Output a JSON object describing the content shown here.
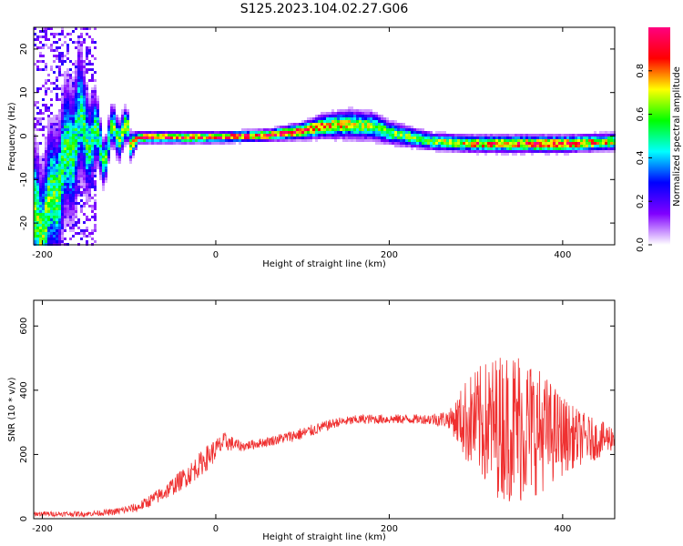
{
  "title": "S125.2023.104.02.27.G06",
  "chart_data": [
    {
      "type": "heatmap",
      "xlabel": "Height of straight line (km)",
      "ylabel": "Frequency (Hz)",
      "xlim": [
        -210,
        460
      ],
      "ylim": [
        -25,
        25
      ],
      "xticks": [
        -200,
        0,
        200,
        400
      ],
      "yticks": [
        -20,
        -10,
        0,
        10,
        20
      ],
      "colorbar": {
        "label": "Normalized spectral amplitude",
        "range": [
          0,
          1
        ],
        "ticks": [
          "0.0",
          "0.2",
          "0.4",
          "0.6",
          "0.8"
        ],
        "tick_values": [
          0.0,
          0.2,
          0.4,
          0.6,
          0.8
        ],
        "colormap": [
          "#ffffff",
          "#8000ff",
          "#0000ff",
          "#00ffff",
          "#00ff00",
          "#ffff00",
          "#ff0000",
          "#ff0080"
        ]
      },
      "ridge": {
        "x": [
          -200,
          -160,
          -130,
          -110,
          -100,
          -90,
          -60,
          0,
          60,
          100,
          120,
          150,
          180,
          200,
          250,
          300,
          350,
          400,
          460
        ],
        "y": [
          -20,
          3,
          -3,
          3,
          -2,
          0,
          0,
          0,
          0.5,
          1.5,
          2.5,
          3,
          2.5,
          1,
          -1,
          -1.5,
          -1.5,
          -1.5,
          -1
        ],
        "spread": [
          25,
          25,
          8,
          7,
          5,
          2,
          2,
          2,
          2,
          3,
          4,
          5,
          5,
          4,
          3,
          3,
          3,
          3,
          3
        ],
        "peak": [
          0.6,
          0.5,
          0.55,
          0.6,
          0.7,
          0.9,
          0.9,
          0.85,
          0.95,
          0.9,
          0.8,
          0.7,
          0.6,
          0.6,
          0.65,
          0.8,
          0.9,
          0.9,
          0.7
        ]
      },
      "grid": false
    },
    {
      "type": "line",
      "xlabel": "Height of straight line (km)",
      "ylabel": "SNR (10 * v/v)",
      "xlim": [
        -210,
        460
      ],
      "ylim": [
        0,
        680
      ],
      "xticks": [
        -200,
        0,
        200,
        400
      ],
      "yticks": [
        0,
        200,
        400,
        600
      ],
      "color": "#ef3030",
      "envelope": {
        "x": [
          -210,
          -150,
          -120,
          -90,
          -60,
          -30,
          -10,
          10,
          30,
          60,
          100,
          140,
          170,
          200,
          240,
          270,
          290,
          320,
          350,
          380,
          410,
          440,
          460
        ],
        "mean": [
          15,
          15,
          20,
          35,
          80,
          140,
          190,
          240,
          225,
          240,
          265,
          300,
          310,
          310,
          310,
          310,
          305,
          290,
          290,
          270,
          255,
          245,
          255
        ],
        "amp": [
          8,
          8,
          10,
          15,
          25,
          35,
          40,
          30,
          15,
          15,
          20,
          15,
          15,
          15,
          15,
          30,
          140,
          220,
          250,
          180,
          100,
          60,
          40
        ]
      },
      "grid": false
    }
  ]
}
